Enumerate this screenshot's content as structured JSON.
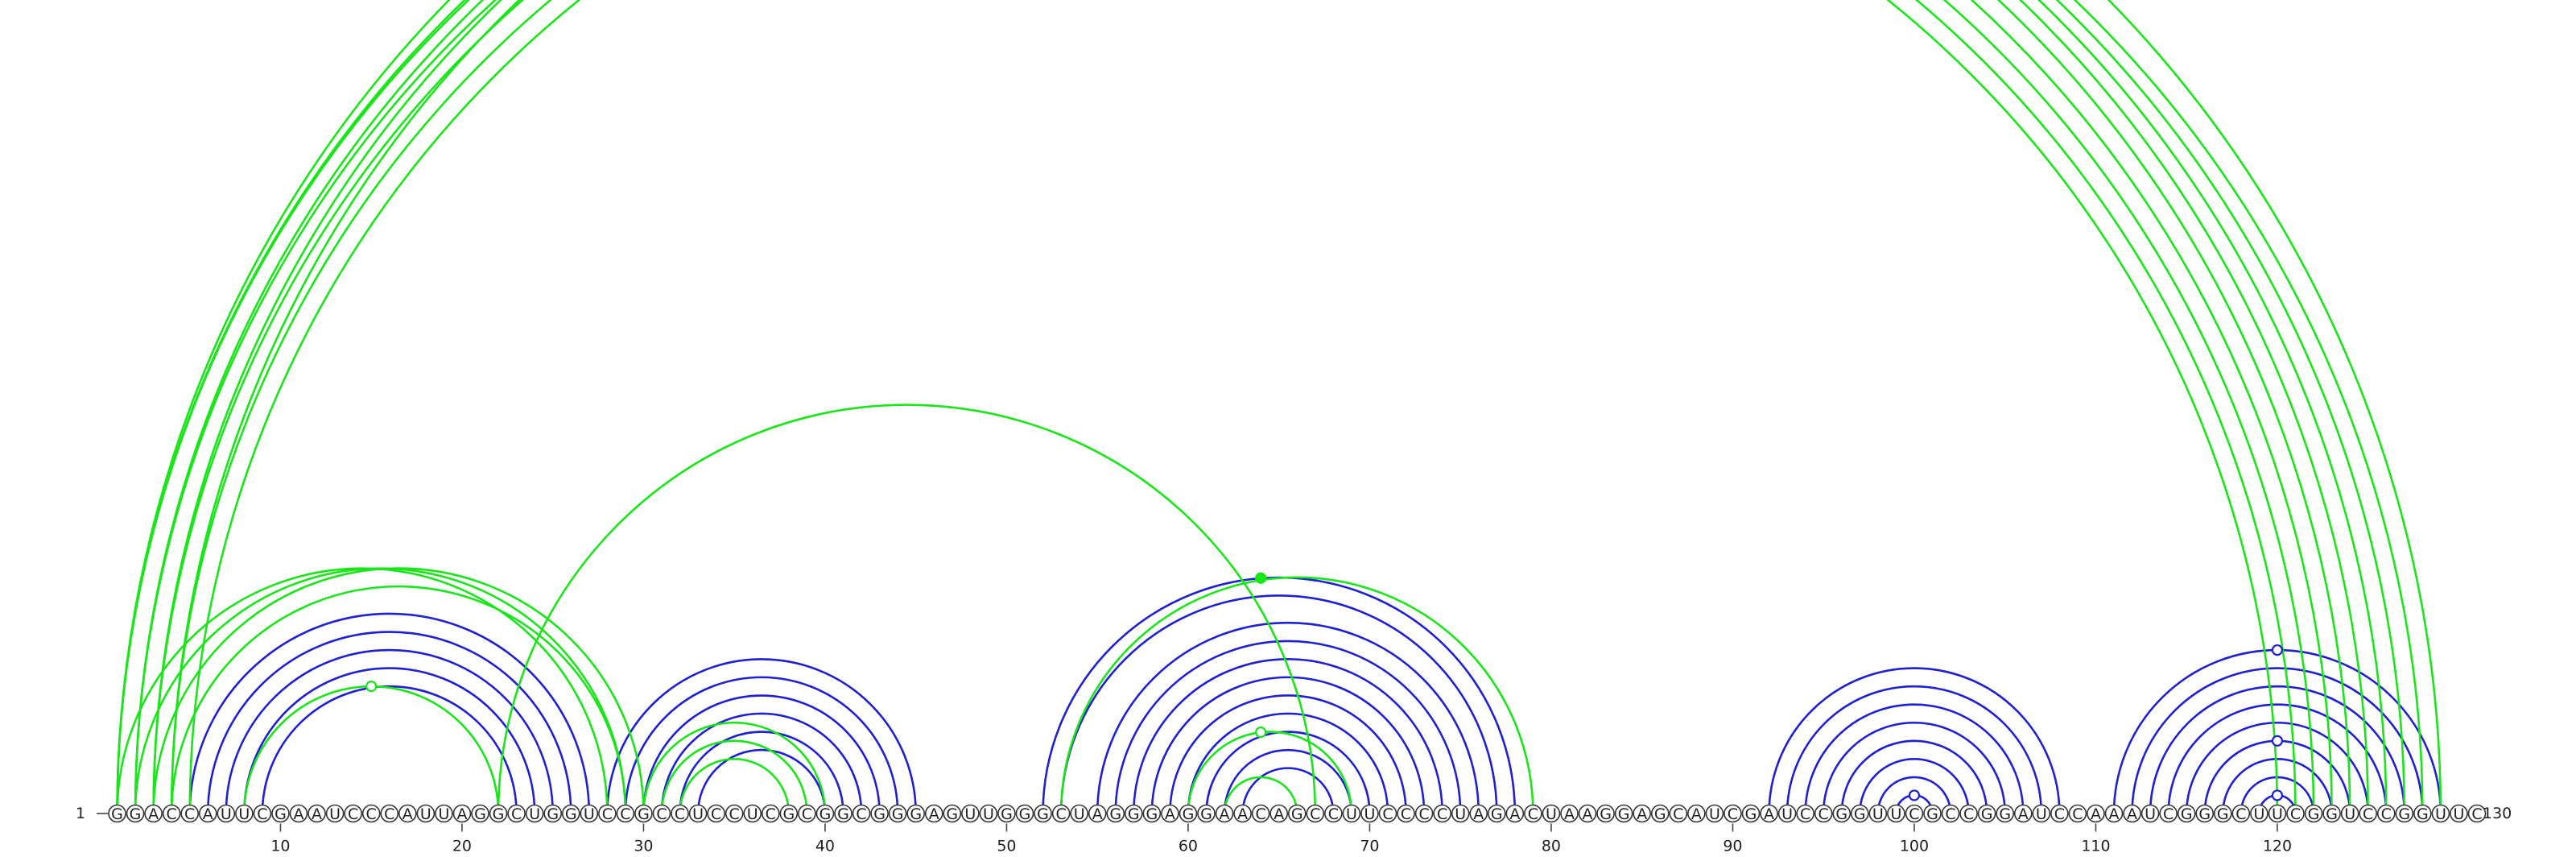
{
  "sequence": "GGACCAUUCGAAUCCCAUUAGGCUGGUCCGCCUCCUCGCGGCGGGAGUUGGGCUAGGGAGGAACAGCCUUCCCCUAGACUAAGGAGCAUCGAUCCGGUUCGCCGGAUCCAAAUCGGGCUUCGGUCCGGUUC",
  "start_label": "1",
  "end_label": "130",
  "tick_labels": [
    "10",
    "20",
    "30",
    "40",
    "50",
    "60",
    "70",
    "80",
    "90",
    "100",
    "110",
    "120"
  ],
  "colors": {
    "blue": "#1f1fd6",
    "green": "#19e619"
  },
  "blue_pairs": [
    [
      5,
      27
    ],
    [
      6,
      26
    ],
    [
      7,
      25
    ],
    [
      8,
      24
    ],
    [
      9,
      23
    ],
    [
      28,
      45
    ],
    [
      29,
      44
    ],
    [
      30,
      43
    ],
    [
      31,
      42
    ],
    [
      32,
      41
    ],
    [
      33,
      40
    ],
    [
      52,
      78
    ],
    [
      53,
      77
    ],
    [
      55,
      76
    ],
    [
      56,
      75
    ],
    [
      57,
      74
    ],
    [
      58,
      73
    ],
    [
      59,
      72
    ],
    [
      60,
      71
    ],
    [
      61,
      70
    ],
    [
      62,
      69
    ],
    [
      63,
      68
    ],
    [
      92,
      108
    ],
    [
      93,
      107
    ],
    [
      94,
      106
    ],
    [
      95,
      105
    ],
    [
      96,
      104
    ],
    [
      97,
      103
    ],
    [
      98,
      102
    ],
    [
      99,
      101
    ],
    [
      111,
      129
    ],
    [
      112,
      128
    ],
    [
      113,
      127
    ],
    [
      114,
      126
    ],
    [
      115,
      125
    ],
    [
      116,
      124
    ],
    [
      117,
      123
    ],
    [
      118,
      122
    ],
    [
      119,
      121
    ]
  ],
  "green_pairs": [
    [
      1,
      124
    ],
    [
      2,
      123
    ],
    [
      3,
      122
    ],
    [
      4,
      121
    ],
    [
      5,
      120
    ],
    [
      1,
      125
    ],
    [
      2,
      126
    ],
    [
      3,
      127
    ],
    [
      4,
      128
    ],
    [
      1,
      129
    ],
    [
      1,
      28
    ],
    [
      2,
      29
    ],
    [
      3,
      30
    ],
    [
      4,
      29
    ],
    [
      8,
      22
    ],
    [
      22,
      67
    ],
    [
      30,
      40
    ],
    [
      31,
      39
    ],
    [
      32,
      38
    ],
    [
      53,
      79
    ],
    [
      60,
      69
    ],
    [
      62,
      66
    ]
  ],
  "markers": [
    {
      "i": 15,
      "j": 15,
      "color": "green",
      "filled": false,
      "near": [
        8,
        22
      ]
    },
    {
      "i": 65,
      "j": 65,
      "color": "green",
      "filled": false,
      "near": [
        1,
        129
      ]
    },
    {
      "i": 64,
      "j": 64,
      "color": "green",
      "filled": true,
      "near": [
        52,
        78
      ]
    },
    {
      "i": 64,
      "j": 64,
      "color": "green",
      "filled": false,
      "near": [
        60,
        69
      ]
    },
    {
      "i": 120,
      "j": 120,
      "color": "blue",
      "filled": false,
      "near": [
        111,
        129
      ]
    },
    {
      "i": 120,
      "j": 120,
      "color": "blue",
      "filled": false,
      "near": [
        116,
        124
      ]
    },
    {
      "i": 120,
      "j": 120,
      "color": "blue",
      "filled": false,
      "near": [
        119,
        121
      ]
    },
    {
      "i": 100,
      "j": 100,
      "color": "blue",
      "filled": false,
      "near": [
        99,
        101
      ]
    }
  ]
}
